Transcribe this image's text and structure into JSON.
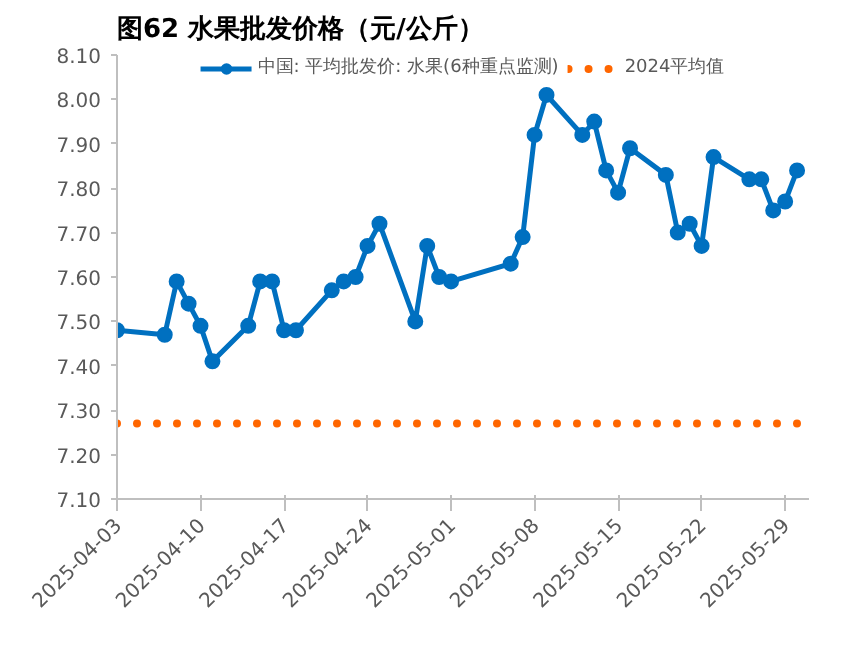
{
  "chart_data": {
    "type": "line",
    "title": "图62 水果批发价格（元/公斤）",
    "x": [
      "2025-04-03",
      "2025-04-07",
      "2025-04-08",
      "2025-04-09",
      "2025-04-10",
      "2025-04-11",
      "2025-04-14",
      "2025-04-15",
      "2025-04-16",
      "2025-04-17",
      "2025-04-18",
      "2025-04-21",
      "2025-04-22",
      "2025-04-23",
      "2025-04-24",
      "2025-04-25",
      "2025-04-28",
      "2025-04-29",
      "2025-04-30",
      "2025-05-01",
      "2025-05-06",
      "2025-05-07",
      "2025-05-08",
      "2025-05-09",
      "2025-05-12",
      "2025-05-13",
      "2025-05-14",
      "2025-05-15",
      "2025-05-16",
      "2025-05-19",
      "2025-05-20",
      "2025-05-21",
      "2025-05-22",
      "2025-05-23",
      "2025-05-26",
      "2025-05-27",
      "2025-05-28",
      "2025-05-29",
      "2025-05-30"
    ],
    "series": [
      {
        "name": "中国: 平均批发价: 水果(6种重点监测)",
        "color": "#0070c0",
        "marker": "circle",
        "line_style": "solid",
        "values": [
          7.48,
          7.47,
          7.59,
          7.54,
          7.49,
          7.41,
          7.49,
          7.59,
          7.59,
          7.48,
          7.48,
          7.57,
          7.59,
          7.6,
          7.67,
          7.72,
          7.5,
          7.67,
          7.6,
          7.59,
          7.63,
          7.69,
          7.92,
          8.01,
          7.92,
          7.95,
          7.84,
          7.79,
          7.89,
          7.83,
          7.7,
          7.72,
          7.67,
          7.87,
          7.82,
          7.82,
          7.75,
          7.77,
          7.84
        ]
      },
      {
        "name": "2024平均值",
        "color": "#ff6600",
        "marker": "none",
        "line_style": "dotted",
        "x": [
          "2025-04-03",
          "2025-05-30"
        ],
        "values": [
          7.27,
          7.27
        ]
      }
    ],
    "xlim": [
      "2025-04-03",
      "2025-05-31"
    ],
    "xticks": [
      {
        "value": "2025-04-03",
        "label": "2025-04-03"
      },
      {
        "value": "2025-04-10",
        "label": "2025-04-10"
      },
      {
        "value": "2025-04-17",
        "label": "2025-04-17"
      },
      {
        "value": "2025-04-24",
        "label": "2025-04-24"
      },
      {
        "value": "2025-05-01",
        "label": "2025-05-01"
      },
      {
        "value": "2025-05-08",
        "label": "2025-05-08"
      },
      {
        "value": "2025-05-15",
        "label": "2025-05-15"
      },
      {
        "value": "2025-05-22",
        "label": "2025-05-22"
      },
      {
        "value": "2025-05-29",
        "label": "2025-05-29"
      }
    ],
    "ylim": [
      7.1,
      8.1
    ],
    "yticks": [
      {
        "value": 7.1,
        "label": "7.10"
      },
      {
        "value": 7.2,
        "label": "7.20"
      },
      {
        "value": 7.3,
        "label": "7.30"
      },
      {
        "value": 7.4,
        "label": "7.40"
      },
      {
        "value": 7.5,
        "label": "7.50"
      },
      {
        "value": 7.6,
        "label": "7.60"
      },
      {
        "value": 7.7,
        "label": "7.70"
      },
      {
        "value": 7.8,
        "label": "7.80"
      },
      {
        "value": 7.9,
        "label": "7.90"
      },
      {
        "value": 8.0,
        "label": "8.00"
      },
      {
        "value": 8.1,
        "label": "8.10"
      }
    ],
    "grid": false,
    "legend": "top"
  }
}
